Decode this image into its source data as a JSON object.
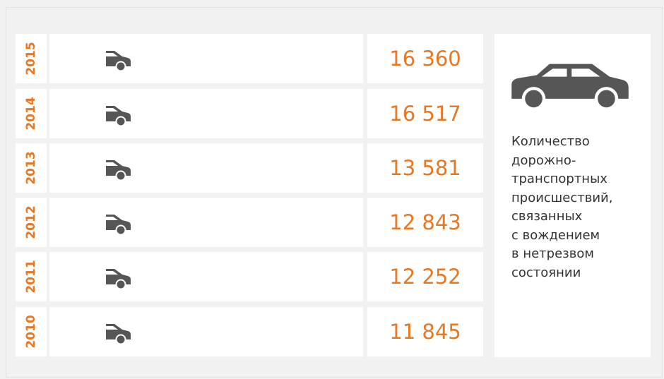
{
  "rows": [
    {
      "year": "2015",
      "value": "16 360"
    },
    {
      "year": "2014",
      "value": "16 517"
    },
    {
      "year": "2013",
      "value": "13 581"
    },
    {
      "year": "2012",
      "value": "12 843"
    },
    {
      "year": "2011",
      "value": "12 252"
    },
    {
      "year": "2010",
      "value": "11 845"
    }
  ],
  "panel": {
    "lines": [
      "Количество",
      "дорожно-",
      "транспортных",
      "происшествий,",
      "связанных",
      "с вождением",
      "в нетрезвом",
      "состоянии"
    ]
  }
}
